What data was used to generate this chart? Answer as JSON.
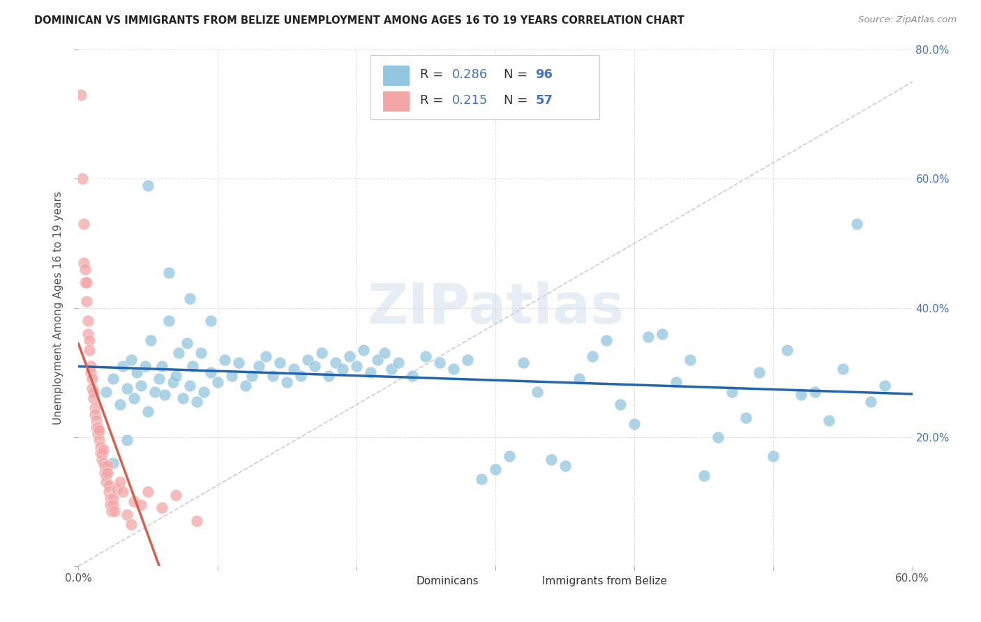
{
  "title": "DOMINICAN VS IMMIGRANTS FROM BELIZE UNEMPLOYMENT AMONG AGES 16 TO 19 YEARS CORRELATION CHART",
  "source": "Source: ZipAtlas.com",
  "ylabel": "Unemployment Among Ages 16 to 19 years",
  "xlim": [
    0,
    0.6
  ],
  "ylim": [
    0,
    0.8
  ],
  "xtick_vals": [
    0.0,
    0.1,
    0.2,
    0.3,
    0.4,
    0.5,
    0.6
  ],
  "xtick_labels_sparse": [
    "0.0%",
    "",
    "",
    "",
    "",
    "",
    "60.0%"
  ],
  "ytick_vals": [
    0.0,
    0.2,
    0.4,
    0.6,
    0.8
  ],
  "right_ytick_labels": [
    "",
    "20.0%",
    "40.0%",
    "60.0%",
    "80.0%"
  ],
  "legend_r1": "0.286",
  "legend_n1": "96",
  "legend_r2": "0.215",
  "legend_n2": "57",
  "blue_color": "#92c5de",
  "pink_color": "#f4a6a6",
  "blue_line_color": "#2166ac",
  "pink_line_color": "#d6604d",
  "ref_line_color": "#cccccc",
  "watermark": "ZIPatlas",
  "blue_label_color": "#4472c4",
  "title_color": "#222222",
  "source_color": "#888888",
  "axis_label_color": "#555555",
  "grid_color": "#e0e0e0",
  "dominican_x": [
    0.02,
    0.025,
    0.03,
    0.032,
    0.035,
    0.038,
    0.04,
    0.042,
    0.045,
    0.048,
    0.05,
    0.052,
    0.055,
    0.058,
    0.06,
    0.062,
    0.065,
    0.068,
    0.07,
    0.072,
    0.075,
    0.078,
    0.08,
    0.082,
    0.085,
    0.088,
    0.09,
    0.095,
    0.1,
    0.105,
    0.11,
    0.115,
    0.12,
    0.125,
    0.13,
    0.135,
    0.14,
    0.145,
    0.15,
    0.155,
    0.16,
    0.165,
    0.17,
    0.175,
    0.18,
    0.185,
    0.19,
    0.195,
    0.2,
    0.205,
    0.21,
    0.215,
    0.22,
    0.225,
    0.23,
    0.24,
    0.25,
    0.26,
    0.27,
    0.28,
    0.29,
    0.3,
    0.31,
    0.32,
    0.33,
    0.34,
    0.35,
    0.36,
    0.37,
    0.38,
    0.39,
    0.4,
    0.41,
    0.42,
    0.43,
    0.44,
    0.45,
    0.46,
    0.47,
    0.48,
    0.49,
    0.5,
    0.51,
    0.52,
    0.53,
    0.54,
    0.55,
    0.56,
    0.57,
    0.58,
    0.025,
    0.035,
    0.05,
    0.065,
    0.08,
    0.095
  ],
  "dominican_y": [
    0.27,
    0.29,
    0.25,
    0.31,
    0.275,
    0.32,
    0.26,
    0.3,
    0.28,
    0.31,
    0.24,
    0.35,
    0.27,
    0.29,
    0.31,
    0.265,
    0.38,
    0.285,
    0.295,
    0.33,
    0.26,
    0.345,
    0.28,
    0.31,
    0.255,
    0.33,
    0.27,
    0.3,
    0.285,
    0.32,
    0.295,
    0.315,
    0.28,
    0.295,
    0.31,
    0.325,
    0.295,
    0.315,
    0.285,
    0.305,
    0.295,
    0.32,
    0.31,
    0.33,
    0.295,
    0.315,
    0.305,
    0.325,
    0.31,
    0.335,
    0.3,
    0.32,
    0.33,
    0.305,
    0.315,
    0.295,
    0.325,
    0.315,
    0.305,
    0.32,
    0.135,
    0.15,
    0.17,
    0.315,
    0.27,
    0.165,
    0.155,
    0.29,
    0.325,
    0.35,
    0.25,
    0.22,
    0.355,
    0.36,
    0.285,
    0.32,
    0.14,
    0.2,
    0.27,
    0.23,
    0.3,
    0.17,
    0.335,
    0.265,
    0.27,
    0.225,
    0.305,
    0.53,
    0.255,
    0.28,
    0.16,
    0.195,
    0.59,
    0.455,
    0.415,
    0.38
  ],
  "belize_x": [
    0.002,
    0.003,
    0.004,
    0.004,
    0.005,
    0.005,
    0.006,
    0.006,
    0.007,
    0.007,
    0.008,
    0.008,
    0.009,
    0.009,
    0.01,
    0.01,
    0.011,
    0.011,
    0.012,
    0.012,
    0.013,
    0.013,
    0.014,
    0.014,
    0.015,
    0.015,
    0.016,
    0.016,
    0.017,
    0.017,
    0.018,
    0.018,
    0.019,
    0.019,
    0.02,
    0.02,
    0.021,
    0.021,
    0.022,
    0.022,
    0.023,
    0.023,
    0.024,
    0.025,
    0.025,
    0.026,
    0.028,
    0.03,
    0.032,
    0.035,
    0.038,
    0.04,
    0.045,
    0.05,
    0.06,
    0.07,
    0.085
  ],
  "belize_y": [
    0.73,
    0.6,
    0.53,
    0.47,
    0.46,
    0.44,
    0.44,
    0.41,
    0.38,
    0.36,
    0.35,
    0.335,
    0.31,
    0.3,
    0.29,
    0.275,
    0.27,
    0.26,
    0.245,
    0.235,
    0.225,
    0.215,
    0.205,
    0.215,
    0.195,
    0.21,
    0.185,
    0.175,
    0.165,
    0.175,
    0.16,
    0.18,
    0.155,
    0.145,
    0.14,
    0.13,
    0.155,
    0.145,
    0.125,
    0.115,
    0.105,
    0.095,
    0.085,
    0.105,
    0.095,
    0.085,
    0.12,
    0.13,
    0.115,
    0.08,
    0.065,
    0.1,
    0.095,
    0.115,
    0.09,
    0.11,
    0.07
  ]
}
